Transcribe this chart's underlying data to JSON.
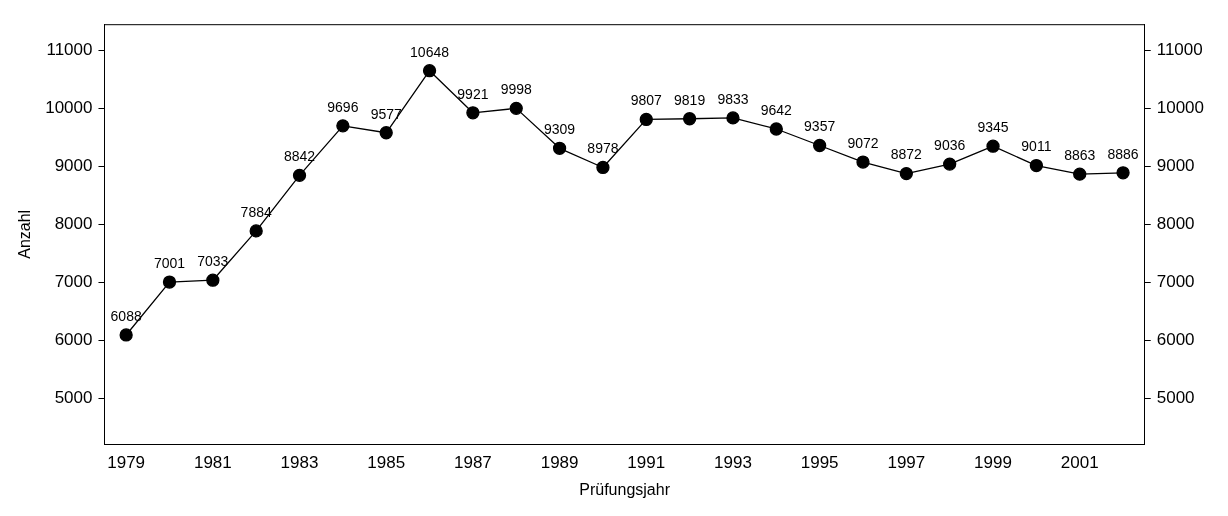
{
  "chart_data": {
    "type": "line",
    "xlabel": "Prüfungsjahr",
    "ylabel": "Anzahl",
    "x": [
      1979,
      1980,
      1981,
      1982,
      1983,
      1984,
      1985,
      1986,
      1987,
      1988,
      1989,
      1990,
      1991,
      1992,
      1993,
      1994,
      1995,
      1996,
      1997,
      1998,
      1999,
      2000,
      2001,
      2002
    ],
    "series": [
      {
        "color": "#000000",
        "values": [
          6088,
          7001,
          7033,
          7884,
          8842,
          9696,
          9577,
          10648,
          9921,
          9998,
          9309,
          8978,
          9807,
          9819,
          9833,
          9642,
          9357,
          9072,
          8872,
          9036,
          9345,
          9011,
          8863,
          8886
        ]
      }
    ],
    "xlim": [
      1978.5,
      2002.5
    ],
    "xticks": [
      1979,
      1981,
      1983,
      1985,
      1987,
      1989,
      1991,
      1993,
      1995,
      1997,
      1999,
      2001
    ],
    "ylim": [
      4200,
      11450
    ],
    "yticks": [
      5000,
      6000,
      7000,
      8000,
      9000,
      10000,
      11000
    ],
    "y2lim": [
      4200,
      11450
    ],
    "y2ticks": [
      5000,
      6000,
      7000,
      8000,
      9000,
      10000,
      11000
    ],
    "data_labels": true,
    "marker": "circle",
    "line_style": "solid",
    "grid": false,
    "legend": false
  }
}
